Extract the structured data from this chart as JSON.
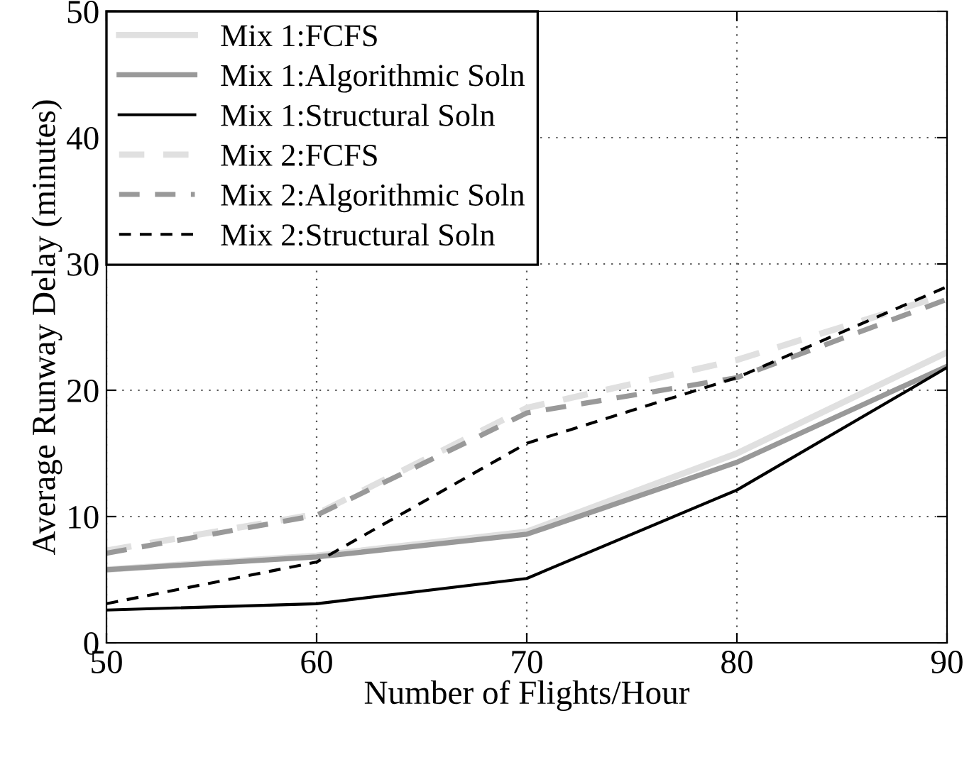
{
  "chart_data": {
    "type": "line",
    "xlabel": "Number of Flights/Hour",
    "ylabel": "Average Runway Delay (minutes)",
    "x": [
      50,
      60,
      70,
      80,
      90
    ],
    "xlim": [
      50,
      90
    ],
    "xticks": [
      50,
      60,
      70,
      80,
      90
    ],
    "ylim": [
      0,
      50
    ],
    "yticks": [
      0,
      10,
      20,
      30,
      40,
      50
    ],
    "grid": true,
    "legend": "top left",
    "marker": "none",
    "series": [
      {
        "name": "Mix 1:FCFS",
        "color": "#e0e0e0",
        "line_style": "solid",
        "values": [
          5.8,
          6.9,
          8.8,
          15.0,
          23.0
        ]
      },
      {
        "name": "Mix 1:Algorithmic Soln",
        "color": "#999999",
        "line_style": "solid",
        "values": [
          5.8,
          6.8,
          8.6,
          14.3,
          21.9
        ]
      },
      {
        "name": "Mix 1:Structural Soln",
        "color": "#000000",
        "line_style": "solid",
        "values": [
          2.6,
          3.1,
          5.1,
          12.1,
          21.8
        ]
      },
      {
        "name": "Mix 2:FCFS",
        "color": "#e0e0e0",
        "line_style": "dashed",
        "values": [
          7.3,
          10.2,
          18.6,
          22.4,
          27.6
        ]
      },
      {
        "name": "Mix 2:Algorithmic Soln",
        "color": "#999999",
        "line_style": "dashed",
        "values": [
          7.1,
          10.1,
          18.2,
          21.0,
          27.2
        ]
      },
      {
        "name": "Mix 2:Structural Soln",
        "color": "#000000",
        "line_style": "dashed",
        "values": [
          3.1,
          6.4,
          15.8,
          21.0,
          28.2
        ]
      }
    ]
  }
}
